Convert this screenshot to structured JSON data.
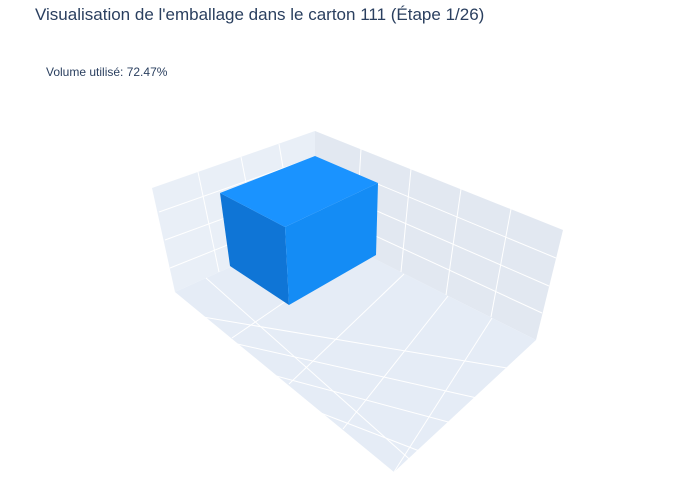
{
  "chart_data": {
    "type": "3d-box",
    "title": "Visualisation de l'emballage dans le carton 111 (Étape 1/26)",
    "annotation": "Volume utilisé: 72.47%",
    "box_color": "#1890ff",
    "scene_bg": "#e5ecf6",
    "grid_color": "#ffffff"
  }
}
